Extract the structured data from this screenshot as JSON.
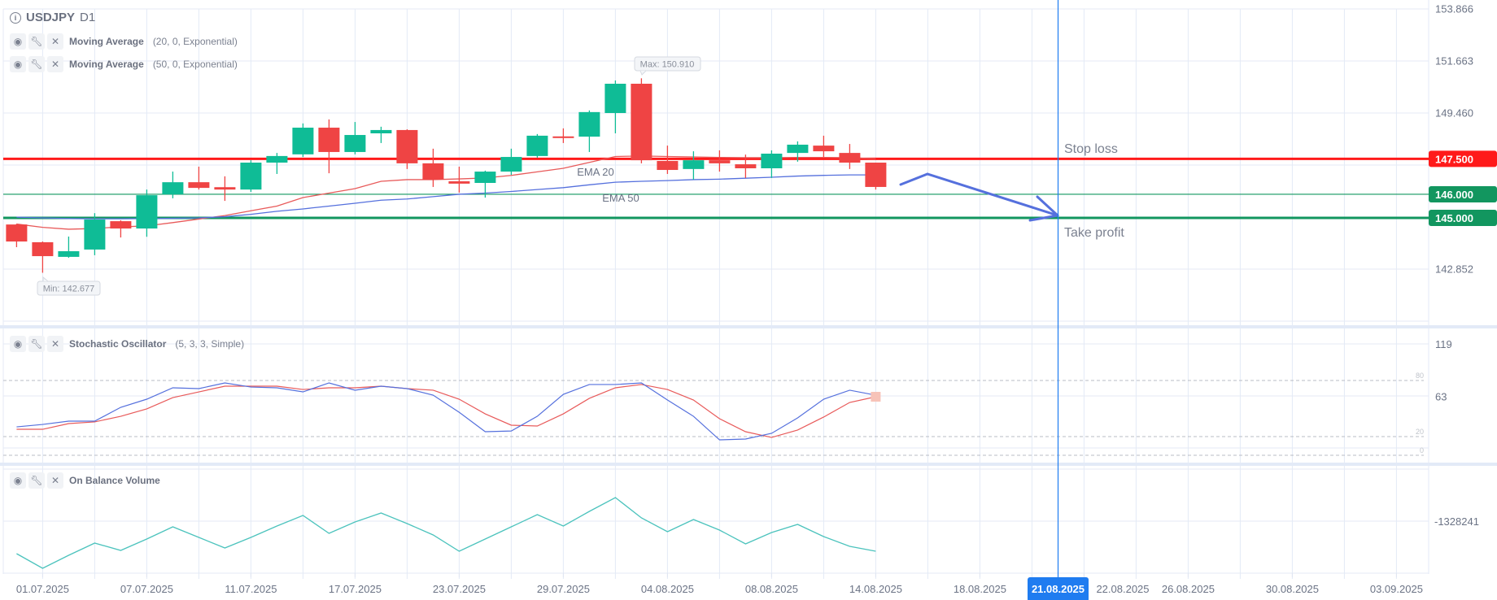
{
  "header": {
    "symbol": "USDJPY",
    "timeframe": "D1"
  },
  "indicators": [
    {
      "name": "Moving Average",
      "params": "(20, 0, Exponential)"
    },
    {
      "name": "Moving Average",
      "params": "(50, 0, Exponential)"
    }
  ],
  "stoch_header": {
    "name": "Stochastic Oscillator",
    "params": "(5, 3, 3, Simple)"
  },
  "obv_header": {
    "name": "On Balance Volume"
  },
  "colors": {
    "up": "#0fbc96",
    "down": "#ef4444",
    "ema20": "#e85a5a",
    "ema50": "#5570dd",
    "stop": "#ff1a1a",
    "take": "#12965f",
    "crosshair": "#1f7cf0",
    "obv": "#4cc3bd"
  },
  "labels": {
    "max": "Max: 150.910",
    "min": "Min: 142.677",
    "ema20": "EMA 20",
    "ema50": "EMA 50",
    "stop_loss": "Stop loss",
    "take_profit": "Take profit",
    "crosshair_date": "21.08.2025"
  },
  "price_axis": {
    "ticks": [
      "153.866",
      "151.663",
      "149.460",
      "142.852"
    ]
  },
  "levels": [
    {
      "value": "147.500",
      "kind": "stop"
    },
    {
      "value": "146.000",
      "kind": "take-thin"
    },
    {
      "value": "145.000",
      "kind": "take"
    }
  ],
  "stoch_axis": {
    "ticks": [
      "119",
      "63"
    ],
    "levels": [
      "80",
      "20",
      "0"
    ]
  },
  "obv_axis": {
    "ticks": [
      "-1328241"
    ]
  },
  "date_axis": [
    {
      "label": "01.07.2025",
      "bar": 2
    },
    {
      "label": "07.07.2025",
      "bar": 6
    },
    {
      "label": "11.07.2025",
      "bar": 10
    },
    {
      "label": "17.07.2025",
      "bar": 14
    },
    {
      "label": "23.07.2025",
      "bar": 18
    },
    {
      "label": "29.07.2025",
      "bar": 22
    },
    {
      "label": "04.08.2025",
      "bar": 26
    },
    {
      "label": "08.08.2025",
      "bar": 30
    },
    {
      "label": "14.08.2025",
      "bar": 34
    },
    {
      "label": "18.08.2025",
      "bar": 38
    },
    {
      "label": "22.08.2025",
      "bar": 42
    },
    {
      "label": "26.08.2025",
      "bar": 46
    },
    {
      "label": "30.08.2025",
      "bar": 50
    },
    {
      "label": "03.09.2025",
      "bar": 54
    }
  ],
  "chart_data": {
    "type": "candlestick",
    "symbol": "USDJPY",
    "ylim": [
      141.0,
      154.2
    ],
    "ohlc": [
      [
        144.72,
        144.75,
        143.76,
        144.0
      ],
      [
        143.97,
        144.0,
        142.677,
        143.38
      ],
      [
        143.35,
        144.21,
        143.31,
        143.59
      ],
      [
        143.66,
        145.2,
        143.42,
        144.93
      ],
      [
        144.86,
        144.9,
        144.17,
        144.55
      ],
      [
        144.55,
        146.2,
        144.2,
        145.96
      ],
      [
        146.0,
        146.96,
        145.83,
        146.51
      ],
      [
        146.51,
        147.17,
        146.2,
        146.27
      ],
      [
        146.3,
        146.76,
        145.72,
        146.2
      ],
      [
        146.2,
        147.44,
        146.1,
        147.34
      ],
      [
        147.34,
        147.75,
        146.86,
        147.62
      ],
      [
        147.69,
        149.0,
        147.58,
        148.82
      ],
      [
        148.82,
        149.17,
        146.89,
        147.79
      ],
      [
        147.79,
        149.06,
        147.69,
        148.51
      ],
      [
        148.58,
        148.86,
        148.17,
        148.72
      ],
      [
        148.72,
        148.75,
        147.07,
        147.31
      ],
      [
        147.31,
        147.93,
        146.31,
        146.62
      ],
      [
        146.55,
        147.17,
        146.07,
        146.45
      ],
      [
        146.48,
        147.0,
        145.86,
        146.96
      ],
      [
        146.96,
        147.93,
        146.82,
        147.58
      ],
      [
        147.62,
        148.55,
        147.55,
        148.48
      ],
      [
        148.45,
        148.79,
        148.17,
        148.42
      ],
      [
        148.44,
        149.55,
        147.79,
        149.48
      ],
      [
        149.44,
        150.82,
        148.58,
        150.68
      ],
      [
        150.68,
        150.91,
        147.31,
        147.44
      ],
      [
        147.41,
        148.06,
        146.86,
        147.03
      ],
      [
        147.07,
        147.82,
        146.62,
        147.44
      ],
      [
        147.44,
        147.86,
        146.96,
        147.31
      ],
      [
        147.27,
        147.68,
        146.69,
        147.1
      ],
      [
        147.1,
        147.86,
        146.69,
        147.72
      ],
      [
        147.75,
        148.24,
        147.38,
        148.1
      ],
      [
        148.06,
        148.48,
        147.58,
        147.82
      ],
      [
        147.75,
        148.13,
        147.07,
        147.34
      ],
      [
        147.34,
        147.34,
        146.2,
        146.31
      ]
    ],
    "ema20": [
      144.74,
      144.6,
      144.52,
      144.55,
      144.62,
      144.66,
      144.8,
      144.95,
      145.1,
      145.3,
      145.5,
      145.86,
      146.05,
      146.24,
      146.55,
      146.62,
      146.62,
      146.65,
      146.69,
      146.8,
      146.95,
      147.1,
      147.35,
      147.6,
      147.62,
      147.6,
      147.58,
      147.56,
      147.55,
      147.55,
      147.56,
      147.56,
      147.55,
      147.5
    ],
    "ema50": [
      145.03,
      145.0,
      144.97,
      144.96,
      144.96,
      144.97,
      144.98,
      145.0,
      145.05,
      145.15,
      145.28,
      145.38,
      145.5,
      145.62,
      145.75,
      145.8,
      145.9,
      146.0,
      146.05,
      146.12,
      146.2,
      146.28,
      146.4,
      146.51,
      146.55,
      146.58,
      146.62,
      146.64,
      146.68,
      146.72,
      146.77,
      146.8,
      146.82,
      146.82
    ],
    "stoch_k": [
      30.4,
      33,
      36.5,
      36.5,
      51.3,
      60,
      72.2,
      71.3,
      77.4,
      73,
      72.2,
      67.8,
      77.4,
      69.6,
      73.9,
      71.3,
      64.3,
      46,
      25.2,
      26,
      41.7,
      65.2,
      75.7,
      75.7,
      77.4,
      59.1,
      41.7,
      16.5,
      17.4,
      23.5,
      40,
      60,
      69.6,
      64.3
    ],
    "stoch_d": [
      27.8,
      27.8,
      33.9,
      35.7,
      41.7,
      49.6,
      61.7,
      67.8,
      73.9,
      73.9,
      73.9,
      70.4,
      72.2,
      72.2,
      73.9,
      71.3,
      69.6,
      60,
      44.3,
      32.2,
      31.3,
      44.3,
      60.9,
      72.2,
      75.7,
      70.4,
      59.1,
      39.1,
      25.2,
      19.1,
      27,
      40.9,
      56.5,
      62.6
    ],
    "obv": [
      -2303241,
      -2753241,
      -2353241,
      -1978241,
      -2203241,
      -1853241,
      -1478241,
      -1803241,
      -2128241,
      -1803241,
      -1453241,
      -1128241,
      -1678241,
      -1328241,
      -1053241,
      -1378241,
      -1728241,
      -2228241,
      -1853241,
      -1478241,
      -1103241,
      -1453241,
      -1003241,
      -578241,
      -1203241,
      -1628241,
      -1253241,
      -1578241,
      -2003241,
      -1653241,
      -1403241,
      -1778241,
      -2078241,
      -2228241
    ]
  }
}
